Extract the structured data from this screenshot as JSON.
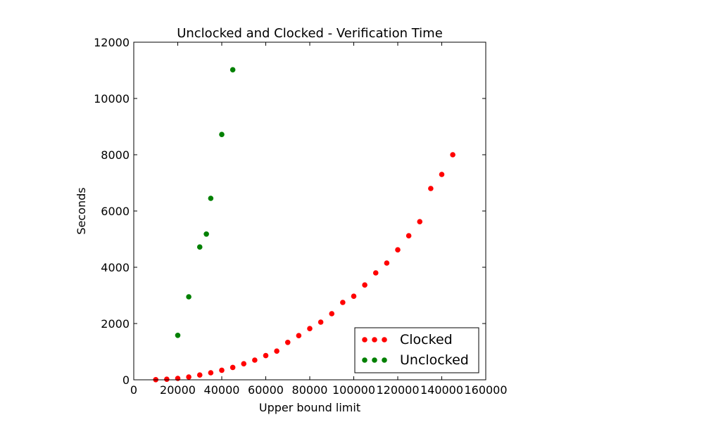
{
  "chart_data": {
    "type": "scatter",
    "title": "Unclocked and Clocked - Verification Time",
    "xlabel": "Upper bound limit",
    "ylabel": "Seconds",
    "xlim": [
      0,
      160000
    ],
    "ylim": [
      0,
      12000
    ],
    "xticks": [
      0,
      20000,
      40000,
      60000,
      80000,
      100000,
      120000,
      140000,
      160000
    ],
    "yticks": [
      0,
      2000,
      4000,
      6000,
      8000,
      10000,
      12000
    ],
    "grid": false,
    "legend_position": "lower-right",
    "series": [
      {
        "name": "Clocked",
        "color": "#ff0000",
        "points": [
          [
            10000,
            5
          ],
          [
            15000,
            20
          ],
          [
            20000,
            50
          ],
          [
            25000,
            100
          ],
          [
            30000,
            170
          ],
          [
            35000,
            250
          ],
          [
            40000,
            340
          ],
          [
            45000,
            440
          ],
          [
            50000,
            570
          ],
          [
            55000,
            700
          ],
          [
            60000,
            860
          ],
          [
            65000,
            1020
          ],
          [
            70000,
            1330
          ],
          [
            75000,
            1570
          ],
          [
            80000,
            1820
          ],
          [
            85000,
            2050
          ],
          [
            90000,
            2350
          ],
          [
            95000,
            2750
          ],
          [
            100000,
            2970
          ],
          [
            105000,
            3370
          ],
          [
            110000,
            3800
          ],
          [
            115000,
            4150
          ],
          [
            120000,
            4620
          ],
          [
            125000,
            5120
          ],
          [
            130000,
            5620
          ],
          [
            135000,
            6800
          ],
          [
            140000,
            7300
          ],
          [
            145000,
            8000
          ]
        ]
      },
      {
        "name": "Unclocked",
        "color": "#008000",
        "points": [
          [
            20000,
            1580
          ],
          [
            25000,
            2950
          ],
          [
            30000,
            4720
          ],
          [
            33000,
            5180
          ],
          [
            35000,
            6450
          ],
          [
            40000,
            8720
          ],
          [
            45000,
            11020
          ]
        ]
      }
    ]
  }
}
